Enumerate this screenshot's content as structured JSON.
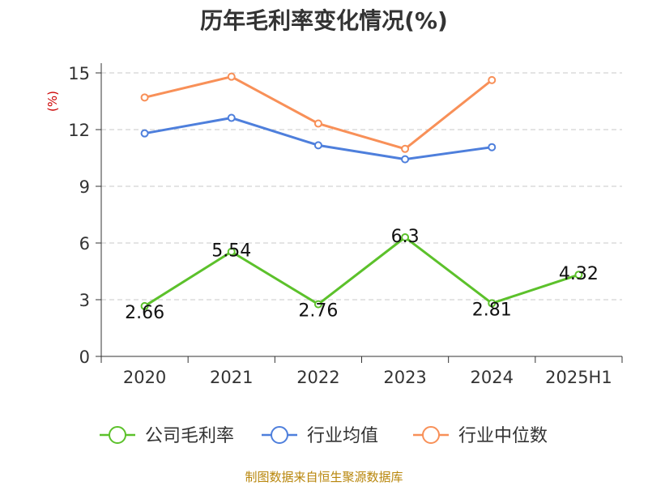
{
  "chart_data": {
    "type": "line",
    "title": "历年毛利率变化情况(%)",
    "ylabel": "(%)",
    "categories": [
      "2020",
      "2021",
      "2022",
      "2023",
      "2024",
      "2025H1"
    ],
    "ylim": [
      0,
      15
    ],
    "yticks": [
      0,
      3,
      6,
      9,
      12,
      15
    ],
    "grid": true,
    "legend_position": "bottom",
    "series": [
      {
        "name": "公司毛利率",
        "color": "#5cc12b",
        "values": [
          2.66,
          5.54,
          2.76,
          6.3,
          2.81,
          4.32
        ],
        "labels": [
          "2.66",
          "5.54",
          "2.76",
          "6.3",
          "2.81",
          "4.32"
        ]
      },
      {
        "name": "行业均值",
        "color": "#4e7fdc",
        "values": [
          11.8,
          12.62,
          11.17,
          10.43,
          11.07,
          null
        ]
      },
      {
        "name": "行业中位数",
        "color": "#f89058",
        "values": [
          13.7,
          14.8,
          12.32,
          10.98,
          14.62,
          null
        ]
      }
    ]
  },
  "source": "制图数据来自恒生聚源数据库"
}
